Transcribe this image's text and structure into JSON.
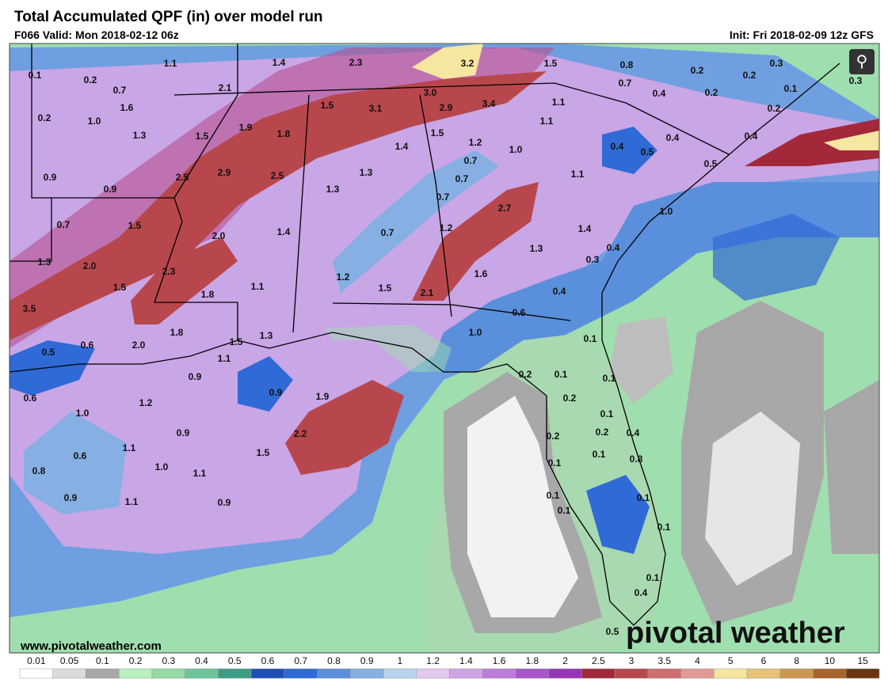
{
  "header": {
    "title": "Total Accumulated QPF (in) over model run",
    "valid": "F066 Valid: Mon 2018-02-12 06z",
    "init": "Init: Fri 2018-02-09 12z GFS"
  },
  "map": {
    "labels": [
      "1.1",
      "1.4",
      "2.3",
      "3.2",
      "1.5",
      "0.8",
      "0.3",
      "0.1",
      "0.2",
      "0.7",
      "2.1",
      "3.0",
      "0.7",
      "0.2",
      "0.2",
      "0.1",
      "0.3",
      "0.4",
      "0.2",
      "1.6",
      "1.5",
      "3.1",
      "2.9",
      "3.4",
      "1.1",
      "0.2",
      "0.2",
      "1.0",
      "1.1",
      "1.3",
      "1.5",
      "1.9",
      "1.8",
      "1.5",
      "1.2",
      "1.0",
      "0.4",
      "0.5",
      "0.4",
      "0.4",
      "1.4",
      "0.7",
      "0.5",
      "2.9",
      "2.5",
      "1.3",
      "0.7",
      "1.1",
      "0.9",
      "0.9",
      "1.3",
      "0.7",
      "2.5",
      "2.7",
      "1.0",
      "0.7",
      "1.5",
      "2.0",
      "1.4",
      "0.7",
      "1.2",
      "1.4",
      "1.3",
      "2.0",
      "2.3",
      "1.3",
      "0.3",
      "0.4",
      "1.2",
      "1.6",
      "1.5",
      "1.8",
      "1.1",
      "1.5",
      "2.1",
      "0.4",
      "3.5",
      "0.6",
      "1.8",
      "1.3",
      "1.5",
      "1.0",
      "0.5",
      "0.6",
      "2.0",
      "0.1",
      "1.1",
      "0.2",
      "0.1",
      "0.1",
      "0.9",
      "0.6",
      "0.9",
      "1.9",
      "0.2",
      "1.2",
      "1.0",
      "0.1",
      "0.9",
      "2.2",
      "0.2",
      "0.2",
      "0.4",
      "1.1",
      "1.5",
      "0.6",
      "0.1",
      "0.8",
      "1.0",
      "0.1",
      "0.8",
      "1.1",
      "0.9",
      "1.1",
      "0.9",
      "0.1",
      "0.1",
      "0.1",
      "0.1",
      "0.1",
      "0.4",
      "0.5"
    ]
  },
  "colorbar": {
    "levels": [
      0.01,
      0.05,
      0.1,
      0.2,
      0.3,
      0.4,
      0.5,
      0.6,
      0.7,
      0.8,
      0.9,
      1,
      1.2,
      1.4,
      1.6,
      1.8,
      2,
      2.5,
      3,
      3.5,
      4,
      5,
      6,
      8,
      10,
      15
    ],
    "colors": [
      "#ffffff",
      "#dadada",
      "#a8a8a8",
      "#b8f0bf",
      "#93dba3",
      "#6ec49a",
      "#3d9c86",
      "#1d4fb8",
      "#2f6ad6",
      "#5a8fdc",
      "#86afe4",
      "#b9d3ee",
      "#e0c8ef",
      "#cfa3e4",
      "#bc7cd8",
      "#a956cb",
      "#9735b8",
      "#a3283a",
      "#b8474d",
      "#cc6f6d",
      "#e19a95",
      "#f5e6a0",
      "#e7c277",
      "#cf9652",
      "#a8642e",
      "#6b3512"
    ]
  },
  "watermark": {
    "url": "www.pivotalweather.com",
    "brand": "pivotal weather"
  }
}
